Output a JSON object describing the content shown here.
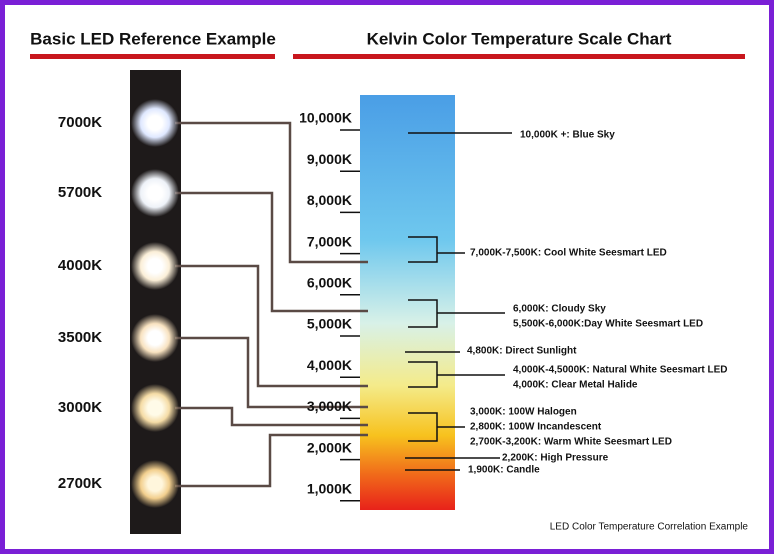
{
  "header": {
    "left_title": "Basic LED Reference Example",
    "right_title": "Kelvin Color Temperature Scale Chart"
  },
  "led_strip": {
    "items": [
      "7000K",
      "5700K",
      "4000K",
      "3500K",
      "3000K",
      "2700K"
    ]
  },
  "scale": {
    "ticks": [
      "10,000K",
      "9,000K",
      "8,000K",
      "7,000K",
      "6,000K",
      "5,000K",
      "4,000K",
      "3,000K",
      "2,000K",
      "1,000K"
    ]
  },
  "annotations": [
    "10,000K +: Blue Sky",
    "7,000K-7,500K: Cool White Seesmart LED",
    "6,000K: Cloudy Sky",
    "5,500K-6,000K:Day White Seesmart LED",
    "4,800K: Direct Sunlight",
    "4,000K-4,5000K: Natural White Seesmart LED",
    "4,000K: Clear Metal Halide",
    "3,000K: 100W Halogen",
    "2,800K: 100W Incandescent",
    "2,700K-3,200K: Warm White Seesmart LED",
    "2,200K: High Pressure",
    "1,900K: Candle"
  ],
  "footer": "LED Color Temperature Correlation Example"
}
